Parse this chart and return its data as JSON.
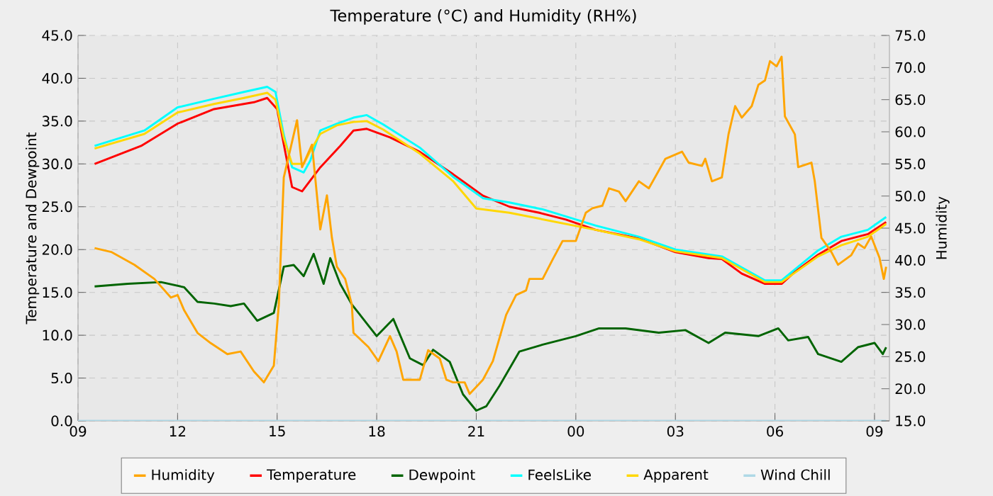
{
  "chart_data": {
    "type": "line",
    "title": "Temperature (°C) and Humidity (RH%)",
    "ylabel": "Temperature and Dewpoint",
    "y2label": "Humidity",
    "xlim": [
      9,
      33.45
    ],
    "xticks": [
      {
        "value": 9,
        "label": "09"
      },
      12,
      15,
      18,
      21,
      {
        "value": 24,
        "label": "00"
      },
      {
        "value": 27,
        "label": "03"
      },
      {
        "value": 30,
        "label": "06"
      },
      {
        "value": 33,
        "label": "09"
      }
    ],
    "ylim": [
      0,
      45
    ],
    "yticks": [
      {
        "value": 0,
        "label": "0.0"
      },
      {
        "value": 5,
        "label": "5.0"
      },
      {
        "value": 10,
        "label": "10.0"
      },
      {
        "value": 15,
        "label": "15.0"
      },
      {
        "value": 20,
        "label": "20.0"
      },
      {
        "value": 25,
        "label": "25.0"
      },
      {
        "value": 30,
        "label": "30.0"
      },
      {
        "value": 35,
        "label": "35.0"
      },
      {
        "value": 40,
        "label": "40.0"
      },
      {
        "value": 45,
        "label": "45.0"
      }
    ],
    "y2lim": [
      15,
      75
    ],
    "y2ticks": [
      {
        "value": 15,
        "label": "15.0"
      },
      {
        "value": 20,
        "label": "20.0"
      },
      {
        "value": 25,
        "label": "25.0"
      },
      {
        "value": 30,
        "label": "30.0"
      },
      {
        "value": 35,
        "label": "35.0"
      },
      {
        "value": 40,
        "label": "40.0"
      },
      {
        "value": 45,
        "label": "45.0"
      },
      {
        "value": 50,
        "label": "50.0"
      },
      {
        "value": 55,
        "label": "55.0"
      },
      {
        "value": 60,
        "label": "60.0"
      },
      {
        "value": 65,
        "label": "65.0"
      },
      {
        "value": 70,
        "label": "70.0"
      },
      {
        "value": 75,
        "label": "75.0"
      }
    ],
    "grid": true,
    "legend": "bottom",
    "marker": "none",
    "line_style": "solid",
    "series": [
      {
        "name": "Humidity",
        "color": "#ffa500",
        "axis": "y2",
        "x": [
          9.5,
          10.0,
          10.7,
          11.3,
          11.8,
          12.0,
          12.2,
          12.6,
          13.0,
          13.5,
          13.9,
          14.3,
          14.6,
          14.9,
          15.05,
          15.2,
          15.6,
          15.75,
          16.05,
          16.3,
          16.5,
          16.65,
          16.8,
          17.05,
          17.25,
          17.3,
          17.75,
          18.05,
          18.4,
          18.6,
          18.8,
          19.3,
          19.55,
          19.9,
          20.1,
          20.3,
          20.65,
          20.8,
          21.2,
          21.5,
          21.9,
          22.2,
          22.5,
          22.6,
          23.0,
          23.3,
          23.6,
          24.0,
          24.3,
          24.5,
          24.8,
          25.0,
          25.3,
          25.5,
          25.9,
          26.2,
          26.7,
          27.2,
          27.4,
          27.8,
          27.9,
          28.1,
          28.4,
          28.6,
          28.8,
          29.0,
          29.3,
          29.5,
          29.7,
          29.85,
          30.05,
          30.2,
          30.3,
          30.6,
          30.7,
          31.1,
          31.2,
          31.4,
          31.7,
          31.9,
          32.3,
          32.5,
          32.7,
          32.9,
          33.15,
          33.28,
          33.35
        ],
        "values": [
          41.9,
          41.3,
          39.3,
          37.1,
          34.2,
          34.6,
          32.2,
          28.7,
          27.1,
          25.4,
          25.8,
          22.7,
          21.0,
          23.6,
          33.1,
          52.9,
          61.8,
          54.5,
          58.0,
          44.8,
          50.1,
          43.5,
          39.0,
          37.1,
          33.1,
          28.7,
          26.5,
          24.3,
          28.2,
          25.8,
          21.4,
          21.4,
          26.0,
          24.7,
          21.4,
          21.0,
          21.0,
          19.2,
          21.4,
          24.3,
          31.5,
          34.6,
          35.3,
          37.1,
          37.1,
          40.1,
          43.0,
          43.0,
          47.4,
          48.1,
          48.5,
          51.2,
          50.7,
          49.2,
          52.3,
          51.2,
          55.8,
          56.9,
          55.2,
          54.7,
          55.8,
          52.3,
          52.9,
          59.6,
          64.0,
          62.2,
          64.0,
          67.3,
          68.0,
          71.0,
          70.2,
          71.7,
          62.4,
          59.6,
          54.5,
          55.2,
          52.3,
          43.5,
          41.3,
          39.3,
          40.8,
          42.6,
          41.9,
          43.7,
          40.4,
          37.1,
          39.0
        ]
      },
      {
        "name": "Temperature",
        "color": "#ff0000",
        "x": [
          9.5,
          10.9,
          12.0,
          13.1,
          14.3,
          14.7,
          15.0,
          15.2,
          15.45,
          15.75,
          16.3,
          16.9,
          17.3,
          17.7,
          18.4,
          19.3,
          20.3,
          21.2,
          22.0,
          22.9,
          23.7,
          24.6,
          25.9,
          27.0,
          28.0,
          28.4,
          29.0,
          29.7,
          30.2,
          30.6,
          31.3,
          32.0,
          32.8,
          33.35
        ],
        "values": [
          30.0,
          32.1,
          34.7,
          36.4,
          37.2,
          37.7,
          36.4,
          32.3,
          27.3,
          26.8,
          29.6,
          32.1,
          33.9,
          34.1,
          33.1,
          31.4,
          28.8,
          26.3,
          25.0,
          24.3,
          23.5,
          22.3,
          21.3,
          19.7,
          19.0,
          18.9,
          17.2,
          16.0,
          16.0,
          17.4,
          19.4,
          21.0,
          21.8,
          23.2
        ]
      },
      {
        "name": "Dewpoint",
        "color": "#006400",
        "x": [
          9.5,
          10.5,
          11.5,
          12.2,
          12.6,
          13.1,
          13.6,
          14.0,
          14.4,
          14.9,
          15.2,
          15.5,
          15.8,
          16.1,
          16.4,
          16.6,
          16.9,
          17.25,
          18.0,
          18.5,
          19.0,
          19.4,
          19.7,
          20.2,
          20.6,
          21.0,
          21.3,
          21.7,
          22.3,
          23.0,
          24.0,
          24.7,
          25.5,
          26.5,
          27.3,
          28.0,
          28.5,
          29.5,
          30.1,
          30.4,
          31.0,
          31.3,
          32.0,
          32.5,
          33.0,
          33.25,
          33.35
        ],
        "values": [
          15.7,
          16.0,
          16.2,
          15.6,
          13.9,
          13.7,
          13.4,
          13.7,
          11.7,
          12.6,
          18.0,
          18.2,
          16.9,
          19.5,
          16.0,
          19.0,
          16.0,
          13.6,
          9.9,
          11.9,
          7.3,
          6.5,
          8.3,
          6.9,
          3.1,
          1.2,
          1.7,
          4.1,
          8.1,
          8.9,
          9.9,
          10.8,
          10.8,
          10.3,
          10.6,
          9.1,
          10.3,
          9.9,
          10.8,
          9.4,
          9.8,
          7.8,
          6.9,
          8.6,
          9.1,
          7.8,
          8.6
        ]
      },
      {
        "name": "FeelsLike",
        "color": "#00ffff",
        "x": [
          9.5,
          11.0,
          12.0,
          13.1,
          14.0,
          14.7,
          14.95,
          15.2,
          15.45,
          15.8,
          16.0,
          16.3,
          16.8,
          17.3,
          17.7,
          18.2,
          19.3,
          20.3,
          21.2,
          22.0,
          23.0,
          24.6,
          25.9,
          27.0,
          28.4,
          29.7,
          30.2,
          31.3,
          32.0,
          32.8,
          33.35
        ],
        "values": [
          32.1,
          33.9,
          36.6,
          37.6,
          38.4,
          39.0,
          38.4,
          33.4,
          29.6,
          29.0,
          30.4,
          33.9,
          34.7,
          35.4,
          35.7,
          34.6,
          31.9,
          28.5,
          26.0,
          25.5,
          24.7,
          22.8,
          21.5,
          20.0,
          19.2,
          16.4,
          16.4,
          19.9,
          21.5,
          22.3,
          23.8
        ]
      },
      {
        "name": "Apparent",
        "color": "#ffd700",
        "x": [
          9.5,
          11.0,
          12.0,
          13.1,
          14.0,
          14.7,
          14.95,
          15.2,
          15.45,
          15.8,
          16.0,
          16.3,
          16.8,
          17.3,
          17.7,
          18.2,
          19.3,
          20.3,
          21.0,
          22.0,
          24.6,
          25.9,
          27.0,
          28.4,
          29.7,
          30.2,
          31.3,
          32.0,
          32.8,
          33.35
        ],
        "values": [
          31.8,
          33.5,
          36.0,
          37.0,
          37.7,
          38.3,
          37.5,
          33.0,
          30.0,
          30.0,
          31.5,
          33.5,
          34.5,
          34.9,
          35.0,
          34.0,
          31.2,
          28.0,
          24.8,
          24.3,
          22.3,
          21.2,
          19.8,
          19.0,
          16.2,
          16.2,
          19.2,
          20.5,
          21.5,
          23.0
        ]
      },
      {
        "name": "Wind Chill",
        "color": "#add8e6",
        "x": [
          9,
          33.35
        ],
        "values": [
          0,
          0
        ]
      }
    ]
  }
}
